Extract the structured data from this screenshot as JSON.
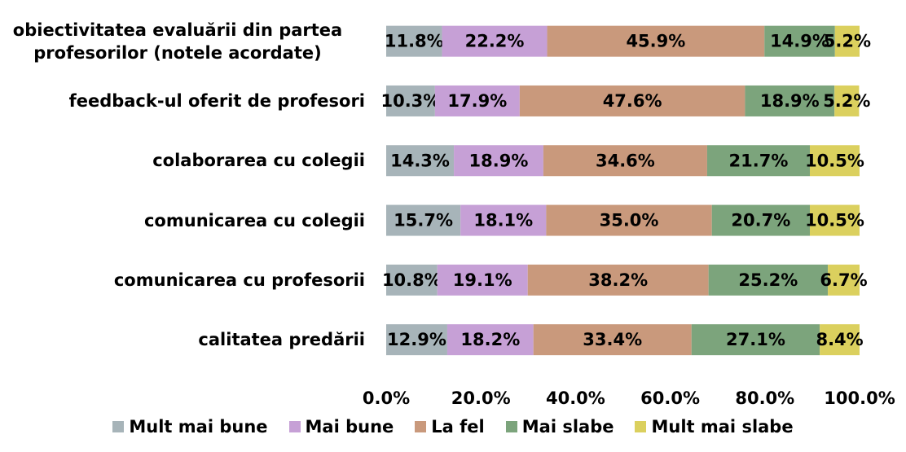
{
  "chart_data": {
    "type": "stacked-barh",
    "categories": [
      "obiectivitatea evaluării din partea profesorilor (notele acordate)",
      "feedback-ul oferit de profesori",
      "colaborarea cu colegii",
      "comunicarea cu colegii",
      "comunicarea cu profesorii",
      "calitatea predării"
    ],
    "series": [
      {
        "name": "Mult mai bune",
        "color": "#a7b4b9",
        "values": [
          11.8,
          10.3,
          14.3,
          15.7,
          10.8,
          12.9
        ],
        "value_labels": [
          "11.8%",
          "10.3%",
          "14.3%",
          "15.7%",
          "10.8%",
          "12.9%"
        ]
      },
      {
        "name": "Mai bune",
        "color": "#c6a0d6",
        "values": [
          22.2,
          17.9,
          18.9,
          18.1,
          19.1,
          18.2
        ],
        "value_labels": [
          "22.2%",
          "17.9%",
          "18.9%",
          "18.1%",
          "19.1%",
          "18.2%"
        ]
      },
      {
        "name": "La fel",
        "color": "#c9997c",
        "values": [
          45.9,
          47.6,
          34.6,
          35.0,
          38.2,
          33.4
        ],
        "value_labels": [
          "45.9%",
          "47.6%",
          "34.6%",
          "35.0%",
          "38.2%",
          "33.4%"
        ]
      },
      {
        "name": "Mai slabe",
        "color": "#7ca47c",
        "values": [
          14.9,
          18.9,
          21.7,
          20.7,
          25.2,
          27.1
        ],
        "value_labels": [
          "14.9%",
          "18.9%",
          "21.7%",
          "20.7%",
          "25.2%",
          "27.1%"
        ]
      },
      {
        "name": "Mult mai slabe",
        "color": "#dbd05e",
        "values": [
          5.2,
          5.2,
          10.5,
          10.5,
          6.7,
          8.4
        ],
        "value_labels": [
          "5.2%",
          "5.2%",
          "10.5%",
          "10.5%",
          "6.7%",
          "8.4%"
        ]
      }
    ],
    "xlim": [
      0,
      100
    ],
    "xticks": [
      {
        "value": 0,
        "label": "0.0%"
      },
      {
        "value": 20,
        "label": "20.0%"
      },
      {
        "value": 40,
        "label": "40.0%"
      },
      {
        "value": 60,
        "label": "60.0%"
      },
      {
        "value": 80,
        "label": "80.0%"
      },
      {
        "value": 100,
        "label": "100.0%"
      }
    ],
    "legend": "bottom"
  }
}
